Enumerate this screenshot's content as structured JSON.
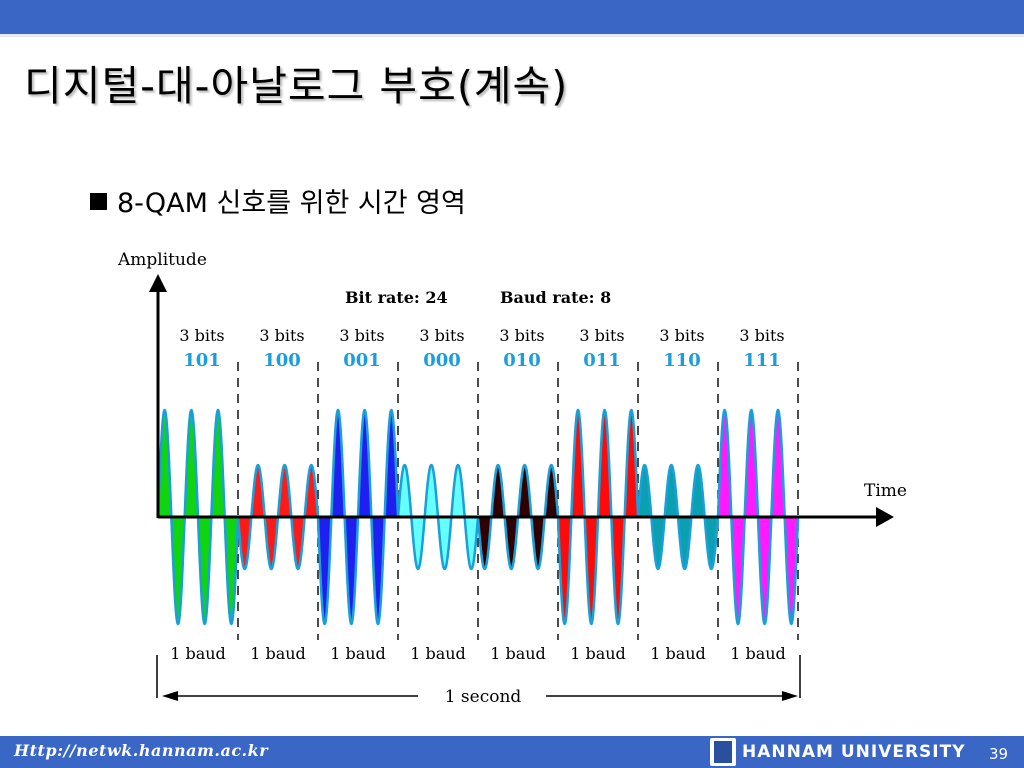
{
  "slide": {
    "title": "디지털-대-아날로그 부호(계속)",
    "bullet": "8-QAM 신호를 위한 시간 영역"
  },
  "diagram": {
    "y_axis_label": "Amplitude",
    "x_axis_label": "Time",
    "bit_rate": "Bit rate: 24",
    "baud_rate": "Baud rate: 8",
    "bits_caption": "3 bits",
    "baud_caption": "1 baud",
    "total_caption": "1 second",
    "symbols": [
      {
        "bits": "101",
        "color": "#11d411",
        "amplitude": "high",
        "phase": "0"
      },
      {
        "bits": "100",
        "color": "#ff1a1a",
        "amplitude": "low",
        "phase": "180"
      },
      {
        "bits": "001",
        "color": "#1f1ff0",
        "amplitude": "high",
        "phase": "180"
      },
      {
        "bits": "000",
        "color": "#66ffff",
        "amplitude": "low",
        "phase": "0"
      },
      {
        "bits": "010",
        "color": "#300000",
        "amplitude": "low",
        "phase": "180"
      },
      {
        "bits": "011",
        "color": "#ff0a0a",
        "amplitude": "high",
        "phase": "180"
      },
      {
        "bits": "110",
        "color": "#0aa0b0",
        "amplitude": "low",
        "phase": "0"
      },
      {
        "bits": "111",
        "color": "#ff1aff",
        "amplitude": "high",
        "phase": "0"
      }
    ],
    "colors": {
      "bits_value": "#1a9fd8",
      "wave_outline": "#1aa0d8"
    }
  },
  "footer": {
    "url": "Http://netwk.hannam.ac.kr",
    "university": "HANNAM  UNIVERSITY",
    "page_number": "39"
  }
}
